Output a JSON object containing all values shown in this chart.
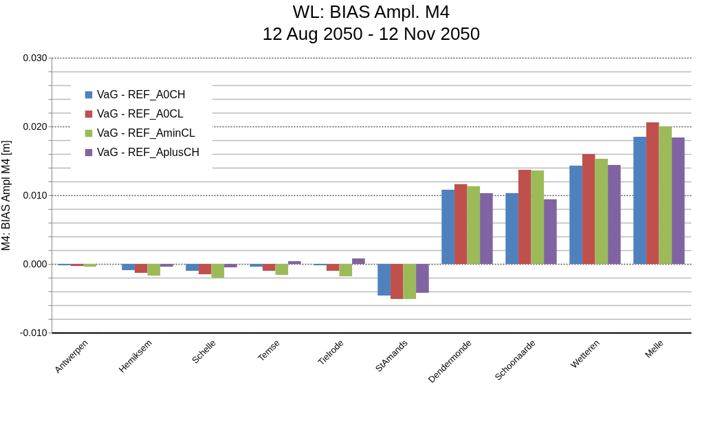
{
  "chart_data": {
    "type": "bar",
    "title": "WL: BIAS Ampl. M4",
    "subtitle": "12 Aug 2050 - 12 Nov 2050",
    "ylabel": "M4: BIAS Ampl M4 [m]",
    "categories": [
      "Antwerpen",
      "Hemiksem",
      "Schelle",
      "Temse",
      "Tielrode",
      "StAmands",
      "Dendermonde",
      "Schoonaarde",
      "Wetteren",
      "Melle"
    ],
    "series": [
      {
        "name": "VaG - REF_A0CH",
        "color": "#4f81bd",
        "values": [
          -0.0002,
          -0.0009,
          -0.001,
          -0.0004,
          -0.0002,
          -0.0046,
          0.0108,
          0.0103,
          0.0143,
          0.0185
        ]
      },
      {
        "name": "VaG - REF_A0CL",
        "color": "#c0504d",
        "values": [
          -0.0003,
          -0.0013,
          -0.0015,
          -0.001,
          -0.001,
          -0.0051,
          0.0116,
          0.0137,
          0.016,
          0.0206
        ]
      },
      {
        "name": "VaG - REF_AminCL",
        "color": "#9bbb59",
        "values": [
          -0.0004,
          -0.0017,
          -0.002,
          -0.0016,
          -0.0018,
          -0.0051,
          0.0113,
          0.0136,
          0.0153,
          0.02
        ]
      },
      {
        "name": "VaG - REF_AplusCH",
        "color": "#8064a2",
        "values": [
          0,
          -0.0004,
          -0.0005,
          0.0004,
          0.0008,
          -0.0042,
          0.0103,
          0.0094,
          0.0144,
          0.0184
        ]
      }
    ],
    "ylim": [
      -0.01,
      0.03
    ],
    "yticks": [
      {
        "value": -0.01,
        "label": "-0.010"
      },
      {
        "value": -0.008,
        "label": null
      },
      {
        "value": -0.006,
        "label": null
      },
      {
        "value": -0.004,
        "label": null
      },
      {
        "value": -0.002,
        "label": null
      },
      {
        "value": 0,
        "label": "0.000"
      },
      {
        "value": 0.002,
        "label": null
      },
      {
        "value": 0.004,
        "label": null
      },
      {
        "value": 0.006,
        "label": null
      },
      {
        "value": 0.008,
        "label": null
      },
      {
        "value": 0.01,
        "label": "0.010"
      },
      {
        "value": 0.012,
        "label": null
      },
      {
        "value": 0.014,
        "label": null
      },
      {
        "value": 0.016,
        "label": null
      },
      {
        "value": 0.018,
        "label": null
      },
      {
        "value": 0.02,
        "label": "0.020"
      },
      {
        "value": 0.022,
        "label": null
      },
      {
        "value": 0.024,
        "label": null
      },
      {
        "value": 0.026,
        "label": null
      },
      {
        "value": 0.028,
        "label": null
      },
      {
        "value": 0.03,
        "label": "0.030"
      }
    ],
    "grid": "y",
    "legend": "top left"
  }
}
